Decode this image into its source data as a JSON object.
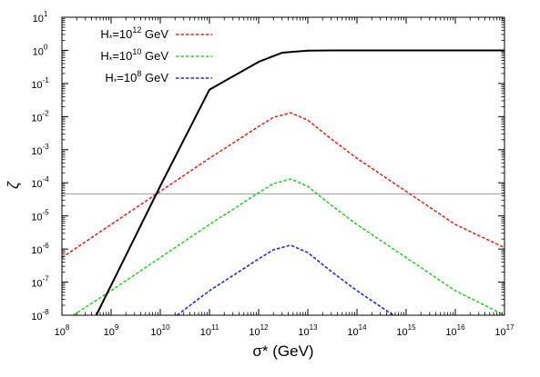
{
  "chart_data": {
    "type": "line",
    "xscale": "log",
    "yscale": "log",
    "xlim": [
      100000000.0,
      1e+17
    ],
    "ylim": [
      1e-08,
      10
    ],
    "xlabel": "σ* (GeV)",
    "ylabel": "ζ",
    "x_ticks": [
      {
        "base": "10",
        "exp": "8"
      },
      {
        "base": "10",
        "exp": "9"
      },
      {
        "base": "10",
        "exp": "10"
      },
      {
        "base": "10",
        "exp": "11"
      },
      {
        "base": "10",
        "exp": "12"
      },
      {
        "base": "10",
        "exp": "13"
      },
      {
        "base": "10",
        "exp": "14"
      },
      {
        "base": "10",
        "exp": "15"
      },
      {
        "base": "10",
        "exp": "16"
      },
      {
        "base": "10",
        "exp": "17"
      }
    ],
    "y_ticks": [
      {
        "base": "10",
        "exp": "-8"
      },
      {
        "base": "10",
        "exp": "-7"
      },
      {
        "base": "10",
        "exp": "-6"
      },
      {
        "base": "10",
        "exp": "-5"
      },
      {
        "base": "10",
        "exp": "-4"
      },
      {
        "base": "10",
        "exp": "-3"
      },
      {
        "base": "10",
        "exp": "-2"
      },
      {
        "base": "10",
        "exp": "-1"
      },
      {
        "base": "10",
        "exp": "0"
      },
      {
        "base": "10",
        "exp": "1"
      }
    ],
    "legend_position": "top-left",
    "series": [
      {
        "name": "H*=10^12 GeV",
        "label_prefix": "H",
        "label_sub": "*",
        "label_base": "=10",
        "label_exp": "12",
        "label_suffix": " GeV",
        "color": "#e8271b",
        "dash": "dashed",
        "x": [
          100000000.0,
          1000000000.0,
          10000000000.0,
          100000000000.0,
          1000000000000.0,
          2000000000000.0,
          4500000000000.0,
          10000000000000.0,
          30000000000000.0,
          100000000000000.0,
          1000000000000000.0,
          1e+16,
          1e+17
        ],
        "y": [
          5.5e-07,
          5.5e-06,
          5.5e-05,
          0.00055,
          0.005,
          0.0095,
          0.013,
          0.0078,
          0.0021,
          0.00055,
          5.5e-05,
          5.5e-06,
          1.1e-06
        ]
      },
      {
        "name": "H*=10^10 GeV",
        "label_prefix": "H",
        "label_sub": "*",
        "label_base": "=10",
        "label_exp": "10",
        "label_suffix": " GeV",
        "color": "#2ed02e",
        "dash": "dashed",
        "x": [
          170000000.0,
          1000000000.0,
          10000000000.0,
          100000000000.0,
          1000000000000.0,
          2000000000000.0,
          4500000000000.0,
          10000000000000.0,
          30000000000000.0,
          100000000000000.0,
          1000000000000000.0,
          1e+16,
          1e+17
        ],
        "y": [
          1e-08,
          5.5e-08,
          5.5e-07,
          5.5e-06,
          5e-05,
          9.5e-05,
          0.00013,
          7.8e-05,
          2.1e-05,
          5.5e-06,
          5.5e-07,
          5.5e-08,
          1e-08
        ]
      },
      {
        "name": "H*=10^8 GeV",
        "label_prefix": "H",
        "label_sub": "*",
        "label_base": "=10",
        "label_exp": "8",
        "label_suffix": " GeV",
        "color": "#1f2ed8",
        "dash": "dashed",
        "x": [
          22000000000.0,
          100000000000.0,
          1000000000000.0,
          2000000000000.0,
          4500000000000.0,
          10000000000000.0,
          30000000000000.0,
          100000000000000.0,
          1000000000000000.0,
          1300000000000000.0
        ],
        "y": [
          1e-08,
          5.5e-08,
          5e-07,
          9.5e-07,
          1.3e-06,
          7.8e-07,
          2.1e-07,
          5.5e-08,
          5.5e-09,
          1e-08
        ]
      },
      {
        "name": "",
        "color": "#000000",
        "dash": "solid",
        "x": [
          500000000.0,
          1000000000.0,
          10000000000.0,
          100000000000.0,
          1000000000000.0,
          3000000000000.0,
          10000000000000.0,
          30000000000000.0,
          100000000000000.0,
          1000000000000000.0,
          1e+16,
          1e+17
        ],
        "y": [
          1e-08,
          8e-08,
          8e-05,
          0.065,
          0.45,
          0.85,
          0.98,
          1.0,
          1.0,
          1.0,
          1.0,
          1.0
        ]
      }
    ],
    "reference_line": {
      "y": 4.6e-05,
      "color": "#aaaaaa"
    }
  }
}
